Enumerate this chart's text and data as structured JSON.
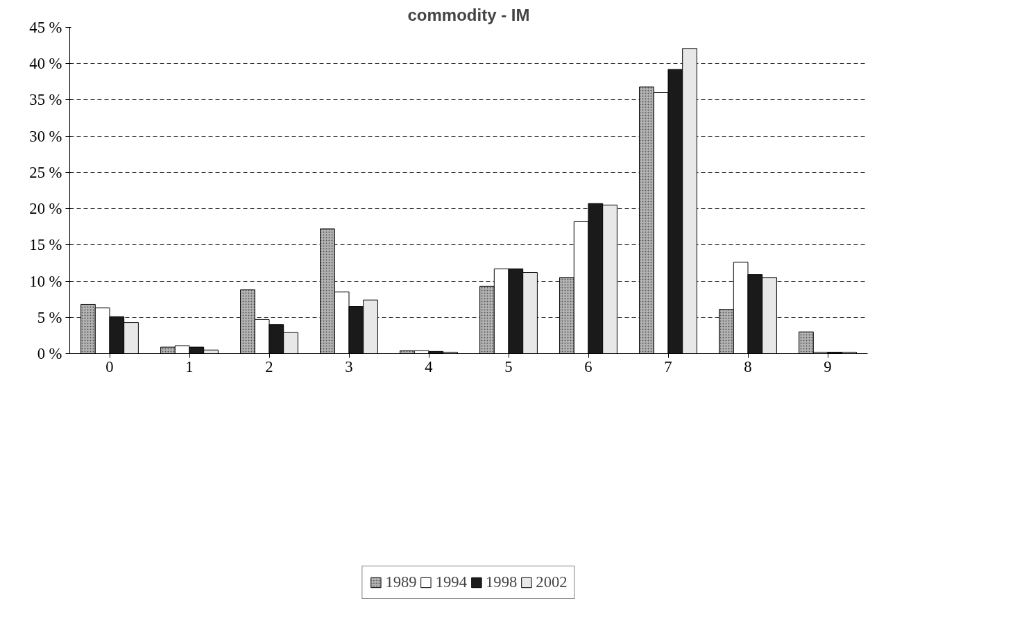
{
  "chart_data": {
    "type": "bar",
    "title": "commodity - IM",
    "categories": [
      "0",
      "1",
      "2",
      "3",
      "4",
      "5",
      "6",
      "7",
      "8",
      "9"
    ],
    "series": [
      {
        "name": "1989",
        "color": "#b4b4b4",
        "values": [
          6.8,
          0.9,
          8.8,
          17.2,
          0.4,
          9.3,
          10.5,
          36.8,
          6.1,
          3.0
        ]
      },
      {
        "name": "1994",
        "color": "#ffffff",
        "values": [
          6.3,
          1.1,
          4.7,
          8.5,
          0.4,
          11.7,
          18.2,
          36.0,
          12.6,
          0.2
        ]
      },
      {
        "name": "1998",
        "color": "#1a1a1a",
        "values": [
          5.1,
          0.9,
          4.0,
          6.5,
          0.3,
          11.7,
          20.7,
          39.2,
          10.9,
          0.2
        ]
      },
      {
        "name": "2002",
        "color": "#e8e8e8",
        "values": [
          4.3,
          0.5,
          2.9,
          7.4,
          0.2,
          11.2,
          20.5,
          42.1,
          10.5,
          0.2
        ]
      }
    ],
    "ylim": [
      0,
      45
    ],
    "yticks": [
      {
        "value": 0,
        "label": "0 %"
      },
      {
        "value": 5,
        "label": "5 %"
      },
      {
        "value": 10,
        "label": "10 %"
      },
      {
        "value": 15,
        "label": "15 %"
      },
      {
        "value": 20,
        "label": "20 %"
      },
      {
        "value": 25,
        "label": "25 %"
      },
      {
        "value": 30,
        "label": "30 %"
      },
      {
        "value": 35,
        "label": "35 %"
      },
      {
        "value": 40,
        "label": "40 %"
      },
      {
        "value": 45,
        "label": "45 %"
      }
    ],
    "grid": "y",
    "line_style": "dashed",
    "legend": "bottom"
  }
}
